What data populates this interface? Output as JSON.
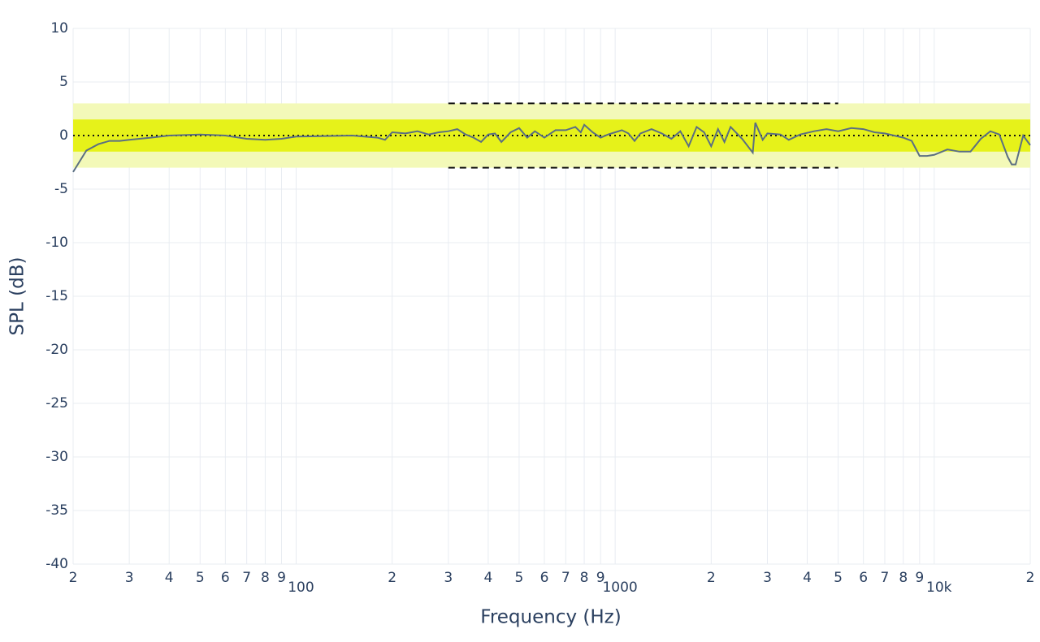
{
  "chart_data": {
    "type": "line",
    "x_title": "Frequency (Hz)",
    "y_title": "SPL (dB)",
    "xlog": true,
    "grid": true,
    "xlim": [
      20,
      20000
    ],
    "ylim": [
      -40,
      10
    ],
    "yticks": [
      10,
      5,
      0,
      -5,
      -10,
      -15,
      -20,
      -25,
      -30,
      -35,
      -40
    ],
    "xticks": [
      {
        "value": 20,
        "label": "2"
      },
      {
        "value": 30,
        "label": "3"
      },
      {
        "value": 40,
        "label": "4"
      },
      {
        "value": 50,
        "label": "5"
      },
      {
        "value": 60,
        "label": "6"
      },
      {
        "value": 70,
        "label": "7"
      },
      {
        "value": 80,
        "label": "8"
      },
      {
        "value": 90,
        "label": "9"
      },
      100,
      {
        "value": 200,
        "label": "2"
      },
      {
        "value": 300,
        "label": "3"
      },
      {
        "value": 400,
        "label": "4"
      },
      {
        "value": 500,
        "label": "5"
      },
      {
        "value": 600,
        "label": "6"
      },
      {
        "value": 700,
        "label": "7"
      },
      {
        "value": 800,
        "label": "8"
      },
      {
        "value": 900,
        "label": "9"
      },
      1000,
      {
        "value": 2000,
        "label": "2"
      },
      {
        "value": 3000,
        "label": "3"
      },
      {
        "value": 4000,
        "label": "4"
      },
      {
        "value": 5000,
        "label": "5"
      },
      {
        "value": 6000,
        "label": "6"
      },
      {
        "value": 7000,
        "label": "7"
      },
      {
        "value": 8000,
        "label": "8"
      },
      {
        "value": 9000,
        "label": "9"
      },
      {
        "value": 10000,
        "label": "10k"
      },
      {
        "value": 20000,
        "label": "2"
      }
    ],
    "bands": [
      {
        "y0": -3,
        "y1": 3,
        "color": "#f3f9b8"
      },
      {
        "y0": -1.5,
        "y1": 1.5,
        "color": "#e6f21a"
      }
    ],
    "hlines": [
      {
        "y": 0,
        "x0": 20,
        "x1": 20000,
        "dash": "dotted"
      },
      {
        "y": 3,
        "x0": 300,
        "x1": 5000,
        "dash": "dashed"
      },
      {
        "y": -3,
        "x0": 300,
        "x1": 5000,
        "dash": "dashed"
      }
    ],
    "series": [
      {
        "color": "#5b6f82",
        "x": [
          20,
          22,
          24,
          26,
          28,
          30,
          35,
          40,
          50,
          60,
          70,
          80,
          90,
          100,
          150,
          180,
          190,
          200,
          220,
          240,
          260,
          280,
          300,
          320,
          340,
          360,
          380,
          400,
          420,
          440,
          470,
          500,
          530,
          560,
          600,
          650,
          700,
          750,
          780,
          800,
          850,
          900,
          950,
          1000,
          1050,
          1100,
          1150,
          1200,
          1300,
          1400,
          1500,
          1600,
          1700,
          1800,
          1900,
          2000,
          2100,
          2200,
          2300,
          2500,
          2700,
          2750,
          2900,
          3000,
          3300,
          3500,
          3800,
          4200,
          4600,
          5000,
          5500,
          6000,
          6500,
          7000,
          8000,
          8500,
          9000,
          9500,
          10000,
          11000,
          12000,
          13000,
          14000,
          15000,
          16000,
          17000,
          17500,
          18000,
          19000,
          20000
        ],
        "values": [
          -3.4,
          -1.4,
          -0.8,
          -0.5,
          -0.5,
          -0.4,
          -0.2,
          0,
          0.1,
          0,
          -0.3,
          -0.4,
          -0.3,
          -0.1,
          0,
          -0.2,
          -0.4,
          0.3,
          0.2,
          0.4,
          0.1,
          0.3,
          0.4,
          0.6,
          0.1,
          -0.2,
          -0.6,
          0.1,
          0.2,
          -0.6,
          0.3,
          0.7,
          -0.2,
          0.4,
          -0.2,
          0.5,
          0.5,
          0.8,
          0.3,
          1.0,
          0.3,
          -0.2,
          0.1,
          0.3,
          0.5,
          0.2,
          -0.5,
          0.2,
          0.6,
          0.2,
          -0.3,
          0.4,
          -1.0,
          0.8,
          0.3,
          -1.0,
          0.6,
          -0.6,
          0.8,
          -0.3,
          -1.6,
          1.2,
          -0.4,
          0.2,
          0.1,
          -0.4,
          0.1,
          0.4,
          0.6,
          0.4,
          0.7,
          0.6,
          0.3,
          0.2,
          -0.2,
          -0.5,
          -1.9,
          -1.9,
          -1.8,
          -1.3,
          -1.5,
          -1.5,
          -0.3,
          0.4,
          0.1,
          -2.0,
          -2.7,
          -2.7,
          0,
          -0.9
        ]
      }
    ]
  }
}
